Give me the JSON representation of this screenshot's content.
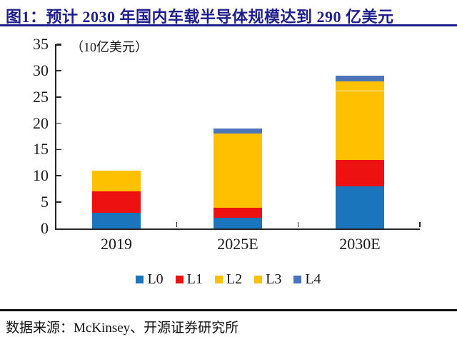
{
  "header": {
    "title": "图1：预计 2030 年国内车载半导体规模达到 290 亿美元"
  },
  "chart_data": {
    "type": "bar",
    "stacked": true,
    "title": "预计 2030 年国内车载半导体规模达到 290 亿美元",
    "unit_label": "（10亿美元）",
    "xlabel": "",
    "ylabel": "10亿美元",
    "categories": [
      "2019",
      "2025E",
      "2030E"
    ],
    "series": [
      {
        "name": "L0",
        "color": "#1B75BC",
        "values": [
          3,
          2,
          8
        ]
      },
      {
        "name": "L1",
        "color": "#EE1111",
        "values": [
          4,
          2,
          5
        ]
      },
      {
        "name": "L2",
        "color": "#FFC000",
        "values": [
          4,
          14,
          13
        ]
      },
      {
        "name": "L3",
        "color": "#FFC000",
        "values": [
          0,
          0,
          2
        ]
      },
      {
        "name": "L4",
        "color": "#4C74B9",
        "values": [
          0,
          1,
          1
        ]
      }
    ],
    "totals": [
      11,
      19,
      29
    ],
    "ylim": [
      0,
      35
    ],
    "ytick_step": 5,
    "yticks": [
      0,
      5,
      10,
      15,
      20,
      25,
      30,
      35
    ],
    "grid": false,
    "legend_position": "bottom",
    "legend_labels": [
      "L0",
      "L1",
      "L2",
      "L3",
      "L4"
    ]
  },
  "footer": {
    "source": "数据来源：McKinsey、开源证券研究所"
  },
  "colors": {
    "title_navy": "#1E1E8C",
    "axis": "#262626",
    "l3_divider": "#FFE18F",
    "text": "#1a1a1a"
  }
}
